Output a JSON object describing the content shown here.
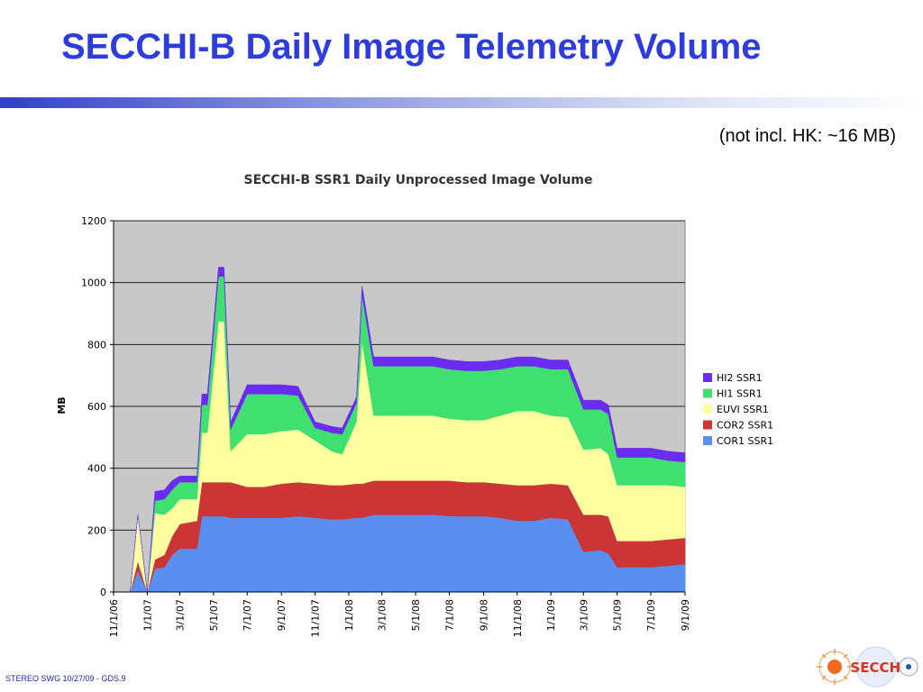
{
  "slide": {
    "title": "SECCHI-B Daily Image Telemetry Volume",
    "note": "(not incl. HK: ~16 MB)",
    "footer": "STEREO SWG 10/27/09 - GDS.9",
    "logo_text": "SECCHI",
    "title_color": "#2d3cdc"
  },
  "chart_data": {
    "type": "area",
    "stacked": true,
    "title": "SECCHI-B SSR1 Daily Unprocessed Image Volume",
    "ylabel": "MB",
    "xlabel": "",
    "ylim": [
      0,
      1200
    ],
    "yticks": [
      0,
      200,
      400,
      600,
      800,
      1000,
      1200
    ],
    "grid": true,
    "plot_background": "#c8c8c8",
    "legend_position": "right",
    "x_start": "11/1/06",
    "x_end": "9/1/09",
    "xtick_labels": [
      "11/1/06",
      "1/1/07",
      "3/1/07",
      "5/1/07",
      "7/1/07",
      "9/1/07",
      "11/1/07",
      "1/1/08",
      "3/1/08",
      "5/1/08",
      "7/1/08",
      "9/1/08",
      "11/1/08",
      "1/1/09",
      "3/1/09",
      "5/1/09",
      "7/1/09",
      "9/1/09"
    ],
    "x": [
      "11/1/06",
      "12/1/06",
      "12/15/06",
      "1/1/07",
      "1/15/07",
      "2/1/07",
      "2/15/07",
      "3/1/07",
      "4/1/07",
      "4/10/07",
      "4/20/07",
      "5/10/07",
      "5/20/07",
      "6/1/07",
      "7/1/07",
      "7/15/07",
      "8/1/07",
      "9/1/07",
      "10/1/07",
      "11/1/07",
      "12/1/07",
      "12/20/07",
      "1/15/08",
      "1/25/08",
      "2/15/08",
      "3/1/08",
      "4/1/08",
      "5/1/08",
      "6/1/08",
      "7/1/08",
      "8/1/08",
      "9/1/08",
      "10/1/08",
      "11/1/08",
      "12/1/08",
      "1/1/09",
      "2/1/09",
      "3/1/09",
      "4/1/09",
      "4/15/09",
      "5/1/09",
      "6/1/09",
      "7/1/09",
      "8/1/09",
      "9/1/09"
    ],
    "series": [
      {
        "name": "COR1 SSR1",
        "color": "#5a8ef0",
        "values": [
          0,
          0,
          70,
          0,
          75,
          80,
          120,
          140,
          140,
          245,
          245,
          245,
          245,
          240,
          240,
          240,
          240,
          240,
          245,
          240,
          235,
          235,
          240,
          240,
          250,
          250,
          250,
          250,
          250,
          245,
          245,
          245,
          240,
          230,
          230,
          240,
          235,
          130,
          135,
          125,
          80,
          80,
          80,
          85,
          90
        ]
      },
      {
        "name": "COR2 SSR1",
        "color": "#cc3535",
        "values": [
          0,
          0,
          30,
          0,
          30,
          40,
          60,
          80,
          90,
          110,
          110,
          110,
          110,
          115,
          100,
          100,
          100,
          110,
          110,
          110,
          110,
          110,
          110,
          110,
          110,
          110,
          110,
          110,
          110,
          115,
          110,
          110,
          110,
          115,
          115,
          110,
          110,
          120,
          115,
          120,
          85,
          85,
          85,
          85,
          85
        ]
      },
      {
        "name": "EUVI SSR1",
        "color": "#ffffa0",
        "values": [
          0,
          0,
          150,
          0,
          150,
          130,
          90,
          80,
          70,
          160,
          160,
          520,
          520,
          100,
          170,
          170,
          170,
          170,
          170,
          140,
          110,
          100,
          200,
          460,
          210,
          210,
          210,
          210,
          210,
          200,
          200,
          200,
          220,
          240,
          240,
          220,
          220,
          210,
          215,
          200,
          180,
          180,
          180,
          175,
          165
        ]
      },
      {
        "name": "HI1 SSR1",
        "color": "#40e070",
        "values": [
          0,
          0,
          0,
          0,
          40,
          50,
          60,
          55,
          55,
          90,
          90,
          145,
          145,
          70,
          130,
          130,
          130,
          120,
          110,
          40,
          60,
          65,
          60,
          150,
          160,
          160,
          160,
          160,
          160,
          160,
          160,
          160,
          150,
          145,
          145,
          150,
          155,
          130,
          125,
          130,
          90,
          90,
          90,
          80,
          80
        ]
      },
      {
        "name": "HI2 SSR1",
        "color": "#6a2cf0",
        "values": [
          0,
          0,
          0,
          0,
          30,
          30,
          30,
          20,
          20,
          35,
          35,
          30,
          30,
          25,
          30,
          30,
          30,
          30,
          30,
          20,
          20,
          20,
          20,
          30,
          30,
          30,
          30,
          30,
          30,
          30,
          30,
          30,
          30,
          30,
          30,
          30,
          30,
          30,
          30,
          30,
          30,
          30,
          30,
          30,
          30
        ]
      }
    ]
  }
}
